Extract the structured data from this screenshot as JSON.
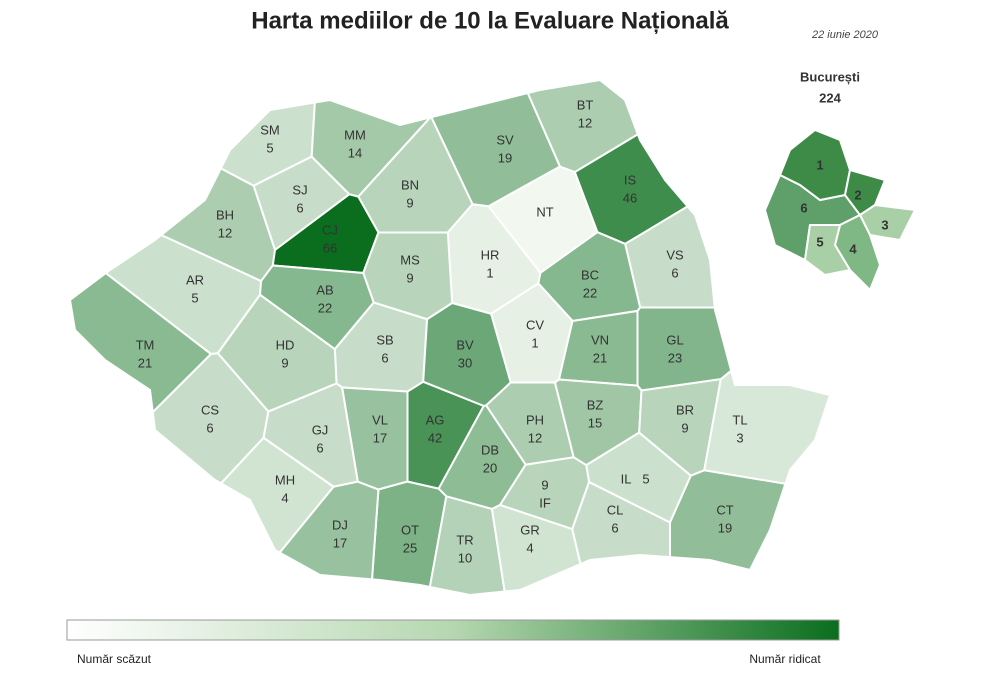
{
  "title": "Harta mediilor de 10 la Evaluare Națională",
  "date": "22 iunie 2020",
  "counties": [
    {
      "code": "SM",
      "value": 5
    },
    {
      "code": "MM",
      "value": 14
    },
    {
      "code": "BT",
      "value": 12
    },
    {
      "code": "SV",
      "value": 19
    },
    {
      "code": "SJ",
      "value": 6
    },
    {
      "code": "BN",
      "value": 9
    },
    {
      "code": "IS",
      "value": 46
    },
    {
      "code": "BH",
      "value": 12
    },
    {
      "code": "CJ",
      "value": 66
    },
    {
      "code": "NT"
    },
    {
      "code": "HR",
      "value": 1
    },
    {
      "code": "VS",
      "value": 6
    },
    {
      "code": "MS",
      "value": 9
    },
    {
      "code": "AR",
      "value": 5
    },
    {
      "code": "AB",
      "value": 22
    },
    {
      "code": "BC",
      "value": 22
    },
    {
      "code": "CV",
      "value": 1
    },
    {
      "code": "SB",
      "value": 6
    },
    {
      "code": "BV",
      "value": 30
    },
    {
      "code": "HD",
      "value": 9
    },
    {
      "code": "TM",
      "value": 21
    },
    {
      "code": "VN",
      "value": 21
    },
    {
      "code": "GL",
      "value": 23
    },
    {
      "code": "CS",
      "value": 6
    },
    {
      "code": "VL",
      "value": 17
    },
    {
      "code": "AG",
      "value": 42
    },
    {
      "code": "GJ",
      "value": 6
    },
    {
      "code": "PH",
      "value": 12
    },
    {
      "code": "BZ",
      "value": 15
    },
    {
      "code": "BR",
      "value": 9
    },
    {
      "code": "TL",
      "value": 3
    },
    {
      "code": "DB",
      "value": 20
    },
    {
      "code": "IL",
      "value": 5
    },
    {
      "code": "MH",
      "value": 4
    },
    {
      "code": "IF",
      "value": 9
    },
    {
      "code": "CT",
      "value": 19
    },
    {
      "code": "OT",
      "value": 25
    },
    {
      "code": "DJ",
      "value": 17
    },
    {
      "code": "TR",
      "value": 10
    },
    {
      "code": "GR",
      "value": 4
    },
    {
      "code": "CL",
      "value": 6
    }
  ],
  "bucharest": {
    "name": "București",
    "value": 224,
    "sectors": [
      {
        "label": "1",
        "color": "#3d8b47"
      },
      {
        "label": "2",
        "color": "#3d8b47"
      },
      {
        "label": "3",
        "color": "#a9cfa6"
      },
      {
        "label": "4",
        "color": "#7fb884"
      },
      {
        "label": "5",
        "color": "#a9cfa6"
      },
      {
        "label": "6",
        "color": "#5fa06a"
      }
    ]
  },
  "legend": {
    "low": "Număr scăzut",
    "high": "Număr ridicat"
  }
}
